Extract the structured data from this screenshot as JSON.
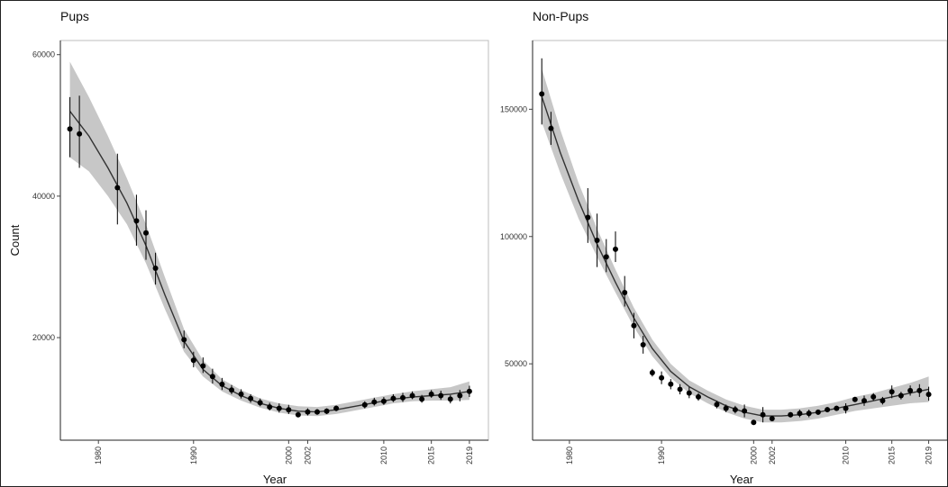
{
  "chart_data": [
    {
      "type": "scatter",
      "title": "Pups",
      "xlabel": "Year",
      "ylabel": "Count",
      "x_ticks": [
        1980,
        1990,
        2000,
        2002,
        2010,
        2015,
        2019
      ],
      "y_ticks": [
        20000,
        40000,
        60000
      ],
      "xlim": [
        1976,
        2021
      ],
      "ylim": [
        5500,
        62000
      ],
      "grid": false,
      "points": [
        {
          "x": 1977,
          "y": 49500,
          "lo": 45500,
          "hi": 54000
        },
        {
          "x": 1978,
          "y": 48800,
          "lo": 44000,
          "hi": 54200
        },
        {
          "x": 1982,
          "y": 41200,
          "lo": 36000,
          "hi": 46000
        },
        {
          "x": 1984,
          "y": 36500,
          "lo": 33000,
          "hi": 40200
        },
        {
          "x": 1985,
          "y": 34800,
          "lo": 31000,
          "hi": 38000
        },
        {
          "x": 1986,
          "y": 29800,
          "lo": 27500,
          "hi": 32000
        },
        {
          "x": 1989,
          "y": 19700,
          "lo": 18500,
          "hi": 21000
        },
        {
          "x": 1990,
          "y": 16800,
          "lo": 15800,
          "hi": 18000
        },
        {
          "x": 1991,
          "y": 16000,
          "lo": 15000,
          "hi": 17200
        },
        {
          "x": 1992,
          "y": 14500,
          "lo": 13500,
          "hi": 15600
        },
        {
          "x": 1993,
          "y": 13400,
          "lo": 12600,
          "hi": 14300
        },
        {
          "x": 1994,
          "y": 12600,
          "lo": 12000,
          "hi": 13300
        },
        {
          "x": 1995,
          "y": 12000,
          "lo": 11400,
          "hi": 12700
        },
        {
          "x": 1996,
          "y": 11400,
          "lo": 10800,
          "hi": 12000
        },
        {
          "x": 1997,
          "y": 10800,
          "lo": 10300,
          "hi": 11400
        },
        {
          "x": 1998,
          "y": 10200,
          "lo": 9700,
          "hi": 10800
        },
        {
          "x": 1999,
          "y": 10000,
          "lo": 9400,
          "hi": 10700
        },
        {
          "x": 2000,
          "y": 9800,
          "lo": 9200,
          "hi": 10500
        },
        {
          "x": 2001,
          "y": 9100,
          "lo": 8800,
          "hi": 9400
        },
        {
          "x": 2002,
          "y": 9500,
          "lo": 9000,
          "hi": 10000
        },
        {
          "x": 2003,
          "y": 9500,
          "lo": 9100,
          "hi": 9900
        },
        {
          "x": 2004,
          "y": 9600,
          "lo": 9200,
          "hi": 10000
        },
        {
          "x": 2005,
          "y": 10000,
          "lo": 9600,
          "hi": 10400
        },
        {
          "x": 2008,
          "y": 10500,
          "lo": 10000,
          "hi": 11000
        },
        {
          "x": 2009,
          "y": 10900,
          "lo": 10400,
          "hi": 11500
        },
        {
          "x": 2010,
          "y": 11000,
          "lo": 10500,
          "hi": 11600
        },
        {
          "x": 2011,
          "y": 11400,
          "lo": 10900,
          "hi": 12000
        },
        {
          "x": 2012,
          "y": 11500,
          "lo": 10900,
          "hi": 12200
        },
        {
          "x": 2013,
          "y": 11800,
          "lo": 11300,
          "hi": 12400
        },
        {
          "x": 2014,
          "y": 11300,
          "lo": 10800,
          "hi": 11900
        },
        {
          "x": 2015,
          "y": 12000,
          "lo": 11500,
          "hi": 12600
        },
        {
          "x": 2016,
          "y": 11800,
          "lo": 11200,
          "hi": 12500
        },
        {
          "x": 2017,
          "y": 11300,
          "lo": 10700,
          "hi": 11900
        },
        {
          "x": 2018,
          "y": 11800,
          "lo": 11000,
          "hi": 12600
        },
        {
          "x": 2019,
          "y": 12400,
          "lo": 11600,
          "hi": 13200
        }
      ],
      "fit": [
        {
          "x": 1977,
          "y": 52000,
          "lo": 45500,
          "hi": 59000
        },
        {
          "x": 1979,
          "y": 48500,
          "lo": 43500,
          "hi": 54000
        },
        {
          "x": 1981,
          "y": 44000,
          "lo": 40000,
          "hi": 48500
        },
        {
          "x": 1983,
          "y": 39000,
          "lo": 36000,
          "hi": 42500
        },
        {
          "x": 1985,
          "y": 33000,
          "lo": 30500,
          "hi": 36000
        },
        {
          "x": 1987,
          "y": 26000,
          "lo": 24000,
          "hi": 28500
        },
        {
          "x": 1989,
          "y": 19500,
          "lo": 18000,
          "hi": 21200
        },
        {
          "x": 1991,
          "y": 15500,
          "lo": 14500,
          "hi": 16800
        },
        {
          "x": 1993,
          "y": 13200,
          "lo": 12400,
          "hi": 14100
        },
        {
          "x": 1995,
          "y": 11800,
          "lo": 11100,
          "hi": 12600
        },
        {
          "x": 1997,
          "y": 10700,
          "lo": 10100,
          "hi": 11400
        },
        {
          "x": 1999,
          "y": 10000,
          "lo": 9400,
          "hi": 10700
        },
        {
          "x": 2001,
          "y": 9600,
          "lo": 9000,
          "hi": 10300
        },
        {
          "x": 2003,
          "y": 9500,
          "lo": 8900,
          "hi": 10200
        },
        {
          "x": 2005,
          "y": 9800,
          "lo": 9200,
          "hi": 10500
        },
        {
          "x": 2007,
          "y": 10300,
          "lo": 9700,
          "hi": 11000
        },
        {
          "x": 2009,
          "y": 10800,
          "lo": 10200,
          "hi": 11500
        },
        {
          "x": 2011,
          "y": 11300,
          "lo": 10700,
          "hi": 12000
        },
        {
          "x": 2013,
          "y": 11600,
          "lo": 11000,
          "hi": 12400
        },
        {
          "x": 2015,
          "y": 11800,
          "lo": 11100,
          "hi": 12700
        },
        {
          "x": 2017,
          "y": 12000,
          "lo": 11100,
          "hi": 13000
        },
        {
          "x": 2019,
          "y": 12400,
          "lo": 11200,
          "hi": 13800
        }
      ]
    },
    {
      "type": "scatter",
      "title": "Non-Pups",
      "xlabel": "Year",
      "ylabel": "",
      "x_ticks": [
        1980,
        1990,
        2000,
        2002,
        2010,
        2015,
        2019
      ],
      "y_ticks": [
        50000,
        100000,
        150000
      ],
      "xlim": [
        1976,
        2021
      ],
      "ylim": [
        20000,
        177000
      ],
      "grid": false,
      "points": [
        {
          "x": 1977,
          "y": 156000,
          "lo": 144000,
          "hi": 170000
        },
        {
          "x": 1978,
          "y": 142500,
          "lo": 136000,
          "hi": 149000
        },
        {
          "x": 1982,
          "y": 107500,
          "lo": 97500,
          "hi": 119000
        },
        {
          "x": 1983,
          "y": 98500,
          "lo": 88000,
          "hi": 109000
        },
        {
          "x": 1984,
          "y": 92000,
          "lo": 86000,
          "hi": 99000
        },
        {
          "x": 1985,
          "y": 95000,
          "lo": 90000,
          "hi": 102000
        },
        {
          "x": 1986,
          "y": 78000,
          "lo": 72500,
          "hi": 84500
        },
        {
          "x": 1987,
          "y": 65000,
          "lo": 60000,
          "hi": 70000
        },
        {
          "x": 1988,
          "y": 57500,
          "lo": 54000,
          "hi": 61000
        },
        {
          "x": 1989,
          "y": 46500,
          "lo": 45000,
          "hi": 48000
        },
        {
          "x": 1990,
          "y": 44500,
          "lo": 42000,
          "hi": 47000
        },
        {
          "x": 1991,
          "y": 42000,
          "lo": 40000,
          "hi": 44000
        },
        {
          "x": 1992,
          "y": 40000,
          "lo": 38000,
          "hi": 42000
        },
        {
          "x": 1993,
          "y": 38500,
          "lo": 36500,
          "hi": 41000
        },
        {
          "x": 1994,
          "y": 37000,
          "lo": 35500,
          "hi": 38500
        },
        {
          "x": 1996,
          "y": 34000,
          "lo": 32500,
          "hi": 35500
        },
        {
          "x": 1997,
          "y": 32500,
          "lo": 31000,
          "hi": 34000
        },
        {
          "x": 1998,
          "y": 32000,
          "lo": 30500,
          "hi": 33500
        },
        {
          "x": 1999,
          "y": 31500,
          "lo": 29000,
          "hi": 34000
        },
        {
          "x": 2000,
          "y": 27000,
          "lo": 26000,
          "hi": 28000
        },
        {
          "x": 2001,
          "y": 30000,
          "lo": 27000,
          "hi": 33000
        },
        {
          "x": 2002,
          "y": 28500,
          "lo": 27500,
          "hi": 29500
        },
        {
          "x": 2004,
          "y": 30000,
          "lo": 29000,
          "hi": 31000
        },
        {
          "x": 2005,
          "y": 30500,
          "lo": 29000,
          "hi": 32000
        },
        {
          "x": 2006,
          "y": 30500,
          "lo": 29000,
          "hi": 32000
        },
        {
          "x": 2007,
          "y": 31000,
          "lo": 30000,
          "hi": 32000
        },
        {
          "x": 2008,
          "y": 32000,
          "lo": 31000,
          "hi": 33000
        },
        {
          "x": 2009,
          "y": 32500,
          "lo": 31500,
          "hi": 33500
        },
        {
          "x": 2010,
          "y": 32500,
          "lo": 30500,
          "hi": 34500
        },
        {
          "x": 2011,
          "y": 36000,
          "lo": 35000,
          "hi": 37000
        },
        {
          "x": 2012,
          "y": 35500,
          "lo": 33500,
          "hi": 37500
        },
        {
          "x": 2013,
          "y": 37000,
          "lo": 35500,
          "hi": 38500
        },
        {
          "x": 2014,
          "y": 35500,
          "lo": 34000,
          "hi": 37000
        },
        {
          "x": 2015,
          "y": 39000,
          "lo": 36500,
          "hi": 41500
        },
        {
          "x": 2016,
          "y": 37500,
          "lo": 36000,
          "hi": 39000
        },
        {
          "x": 2017,
          "y": 39500,
          "lo": 37500,
          "hi": 41500
        },
        {
          "x": 2018,
          "y": 39500,
          "lo": 37000,
          "hi": 42000
        },
        {
          "x": 2019,
          "y": 38000,
          "lo": 35500,
          "hi": 41000
        }
      ],
      "fit": [
        {
          "x": 1977,
          "y": 155000,
          "lo": 145000,
          "hi": 166000
        },
        {
          "x": 1979,
          "y": 133000,
          "lo": 125000,
          "hi": 142000
        },
        {
          "x": 1981,
          "y": 114000,
          "lo": 107000,
          "hi": 121000
        },
        {
          "x": 1983,
          "y": 97000,
          "lo": 92000,
          "hi": 103000
        },
        {
          "x": 1985,
          "y": 82000,
          "lo": 78000,
          "hi": 87000
        },
        {
          "x": 1987,
          "y": 68000,
          "lo": 64500,
          "hi": 72000
        },
        {
          "x": 1989,
          "y": 56000,
          "lo": 53000,
          "hi": 59500
        },
        {
          "x": 1991,
          "y": 47000,
          "lo": 44500,
          "hi": 50000
        },
        {
          "x": 1993,
          "y": 41000,
          "lo": 38500,
          "hi": 43500
        },
        {
          "x": 1995,
          "y": 37000,
          "lo": 34500,
          "hi": 39500
        },
        {
          "x": 1997,
          "y": 33500,
          "lo": 31000,
          "hi": 36000
        },
        {
          "x": 1999,
          "y": 31000,
          "lo": 28500,
          "hi": 33500
        },
        {
          "x": 2001,
          "y": 29500,
          "lo": 27000,
          "hi": 32000
        },
        {
          "x": 2003,
          "y": 29500,
          "lo": 27000,
          "hi": 32000
        },
        {
          "x": 2005,
          "y": 30000,
          "lo": 27500,
          "hi": 32500
        },
        {
          "x": 2007,
          "y": 31000,
          "lo": 28500,
          "hi": 33500
        },
        {
          "x": 2009,
          "y": 32500,
          "lo": 30000,
          "hi": 35000
        },
        {
          "x": 2011,
          "y": 34000,
          "lo": 31500,
          "hi": 37000
        },
        {
          "x": 2013,
          "y": 35500,
          "lo": 32500,
          "hi": 38500
        },
        {
          "x": 2015,
          "y": 37000,
          "lo": 33500,
          "hi": 40500
        },
        {
          "x": 2017,
          "y": 38500,
          "lo": 34500,
          "hi": 42500
        },
        {
          "x": 2019,
          "y": 40000,
          "lo": 35000,
          "hi": 45000
        }
      ]
    }
  ]
}
